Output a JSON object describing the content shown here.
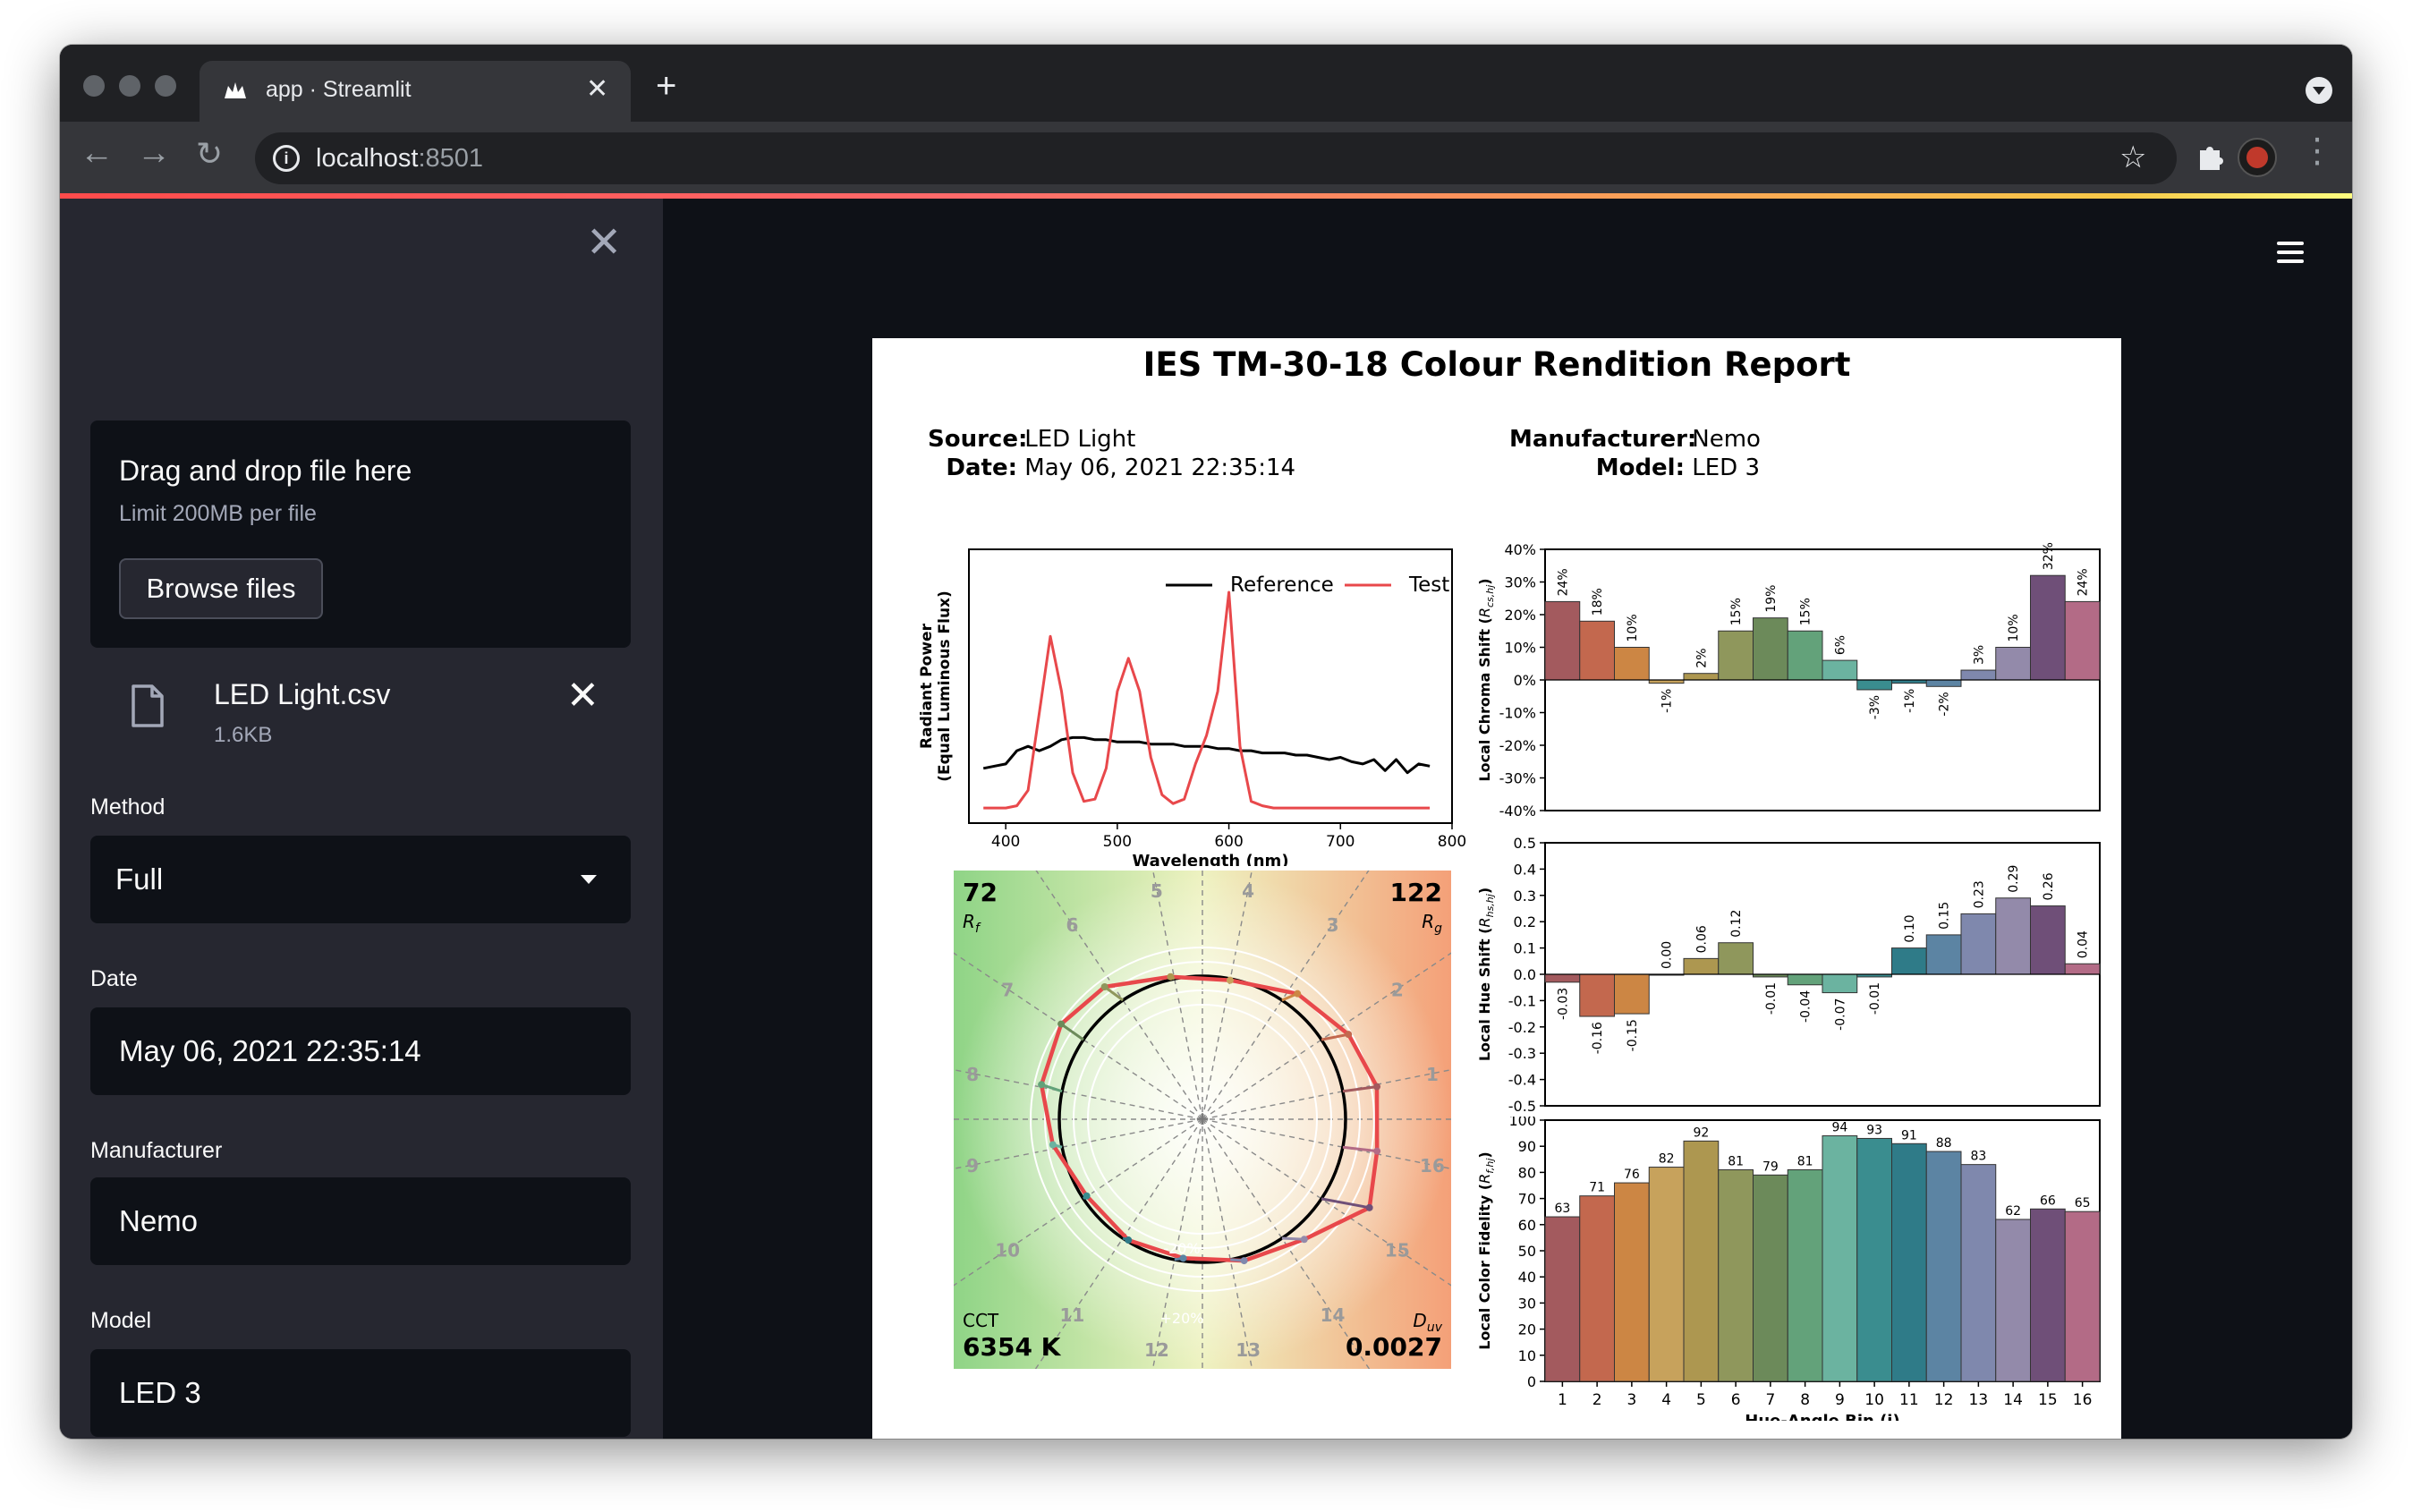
{
  "browser": {
    "tab_title": "app · Streamlit",
    "url_host": "localhost",
    "url_port": ":8501"
  },
  "sidebar": {
    "uploader": {
      "title": "Drag and drop file here",
      "limit": "Limit 200MB per file",
      "browse_label": "Browse files"
    },
    "file": {
      "name": "LED Light.csv",
      "size": "1.6KB"
    },
    "method": {
      "label": "Method",
      "value": "Full"
    },
    "date": {
      "label": "Date",
      "value": "May 06, 2021 22:35:14"
    },
    "manufacturer": {
      "label": "Manufacturer",
      "value": "Nemo"
    },
    "model": {
      "label": "Model",
      "value": "LED 3"
    }
  },
  "report": {
    "title": "IES TM-30-18 Colour Rendition Report",
    "source_label": "Source:",
    "source": "LED Light",
    "date_label": "Date:",
    "date": "May 06, 2021 22:35:14",
    "manufacturer_label": "Manufacturer:",
    "manufacturer": "Nemo",
    "model_label": "Model:",
    "model": "LED 3",
    "rf": "72",
    "rf_label": "R_f",
    "rg": "122",
    "rg_label": "R_g",
    "cct_label": "CCT",
    "cct": "6354 K",
    "duv_label": "D_uv",
    "duv": "0.0027",
    "vector_ring_minus": "-20%",
    "vector_ring_plus": "+20%",
    "vector_bins": [
      "1",
      "2",
      "3",
      "4",
      "5",
      "6",
      "7",
      "8",
      "9",
      "10",
      "11",
      "12",
      "13",
      "14",
      "15",
      "16"
    ]
  },
  "colors": {
    "reference": "#000000",
    "test": "#e8484b",
    "bins": [
      "#a35a5e",
      "#c3684e",
      "#cc8644",
      "#c7a25c",
      "#ad9750",
      "#8f975c",
      "#6c8a5a",
      "#63a27a",
      "#6bb3a0",
      "#3a8d8f",
      "#2f7b88",
      "#5c84a3",
      "#7f88ad",
      "#938aaa",
      "#6f4f78",
      "#b36b86"
    ]
  },
  "chart_data": [
    {
      "type": "line",
      "xlabel": "Wavelength (nm)",
      "ylabel": "Radiant Power (Equal Luminous Flux)",
      "xlim": [
        380,
        780
      ],
      "xticks": [
        400,
        500,
        600,
        700,
        800
      ],
      "legend": "top-right",
      "series": [
        {
          "name": "Reference",
          "x": [
            380,
            390,
            400,
            410,
            420,
            430,
            440,
            450,
            460,
            470,
            480,
            490,
            500,
            510,
            520,
            530,
            540,
            550,
            560,
            570,
            580,
            590,
            600,
            610,
            620,
            630,
            640,
            650,
            660,
            670,
            680,
            690,
            700,
            710,
            720,
            730,
            740,
            750,
            760,
            770,
            780
          ],
          "y": [
            0.2,
            0.21,
            0.22,
            0.28,
            0.3,
            0.28,
            0.3,
            0.33,
            0.34,
            0.34,
            0.33,
            0.33,
            0.32,
            0.32,
            0.32,
            0.31,
            0.31,
            0.31,
            0.3,
            0.3,
            0.3,
            0.29,
            0.29,
            0.28,
            0.28,
            0.27,
            0.27,
            0.27,
            0.26,
            0.26,
            0.25,
            0.24,
            0.25,
            0.23,
            0.22,
            0.24,
            0.19,
            0.24,
            0.18,
            0.22,
            0.21
          ]
        },
        {
          "name": "Test",
          "x": [
            380,
            390,
            400,
            410,
            420,
            430,
            440,
            450,
            460,
            470,
            480,
            490,
            500,
            510,
            520,
            530,
            540,
            550,
            560,
            570,
            580,
            590,
            600,
            610,
            620,
            630,
            640,
            650,
            660,
            670,
            680,
            690,
            700,
            710,
            720,
            730,
            740,
            750,
            760,
            770,
            780
          ],
          "y": [
            0.02,
            0.02,
            0.02,
            0.03,
            0.1,
            0.45,
            0.8,
            0.55,
            0.18,
            0.05,
            0.06,
            0.2,
            0.55,
            0.7,
            0.55,
            0.25,
            0.08,
            0.04,
            0.06,
            0.22,
            0.35,
            0.55,
            1.0,
            0.3,
            0.05,
            0.03,
            0.02,
            0.02,
            0.02,
            0.02,
            0.02,
            0.02,
            0.02,
            0.02,
            0.02,
            0.02,
            0.02,
            0.02,
            0.02,
            0.02,
            0.02
          ]
        }
      ]
    },
    {
      "type": "bar",
      "ylabel": "Local Chroma Shift (R_cs,hj)",
      "ylim": [
        -0.4,
        0.4
      ],
      "yticks": [
        "-40%",
        "-30%",
        "-20%",
        "-10%",
        "0%",
        "10%",
        "20%",
        "30%",
        "40%"
      ],
      "categories": [
        "1",
        "2",
        "3",
        "4",
        "5",
        "6",
        "7",
        "8",
        "9",
        "10",
        "11",
        "12",
        "13",
        "14",
        "15",
        "16"
      ],
      "values": [
        0.24,
        0.18,
        0.1,
        -0.01,
        0.02,
        0.15,
        0.19,
        0.15,
        0.06,
        -0.03,
        -0.01,
        -0.02,
        0.03,
        0.1,
        0.32,
        0.24
      ],
      "labels": [
        "24%",
        "18%",
        "10%",
        "-1%",
        "2%",
        "15%",
        "19%",
        "15%",
        "6%",
        "-3%",
        "-1%",
        "-2%",
        "3%",
        "10%",
        "32%",
        "24%"
      ]
    },
    {
      "type": "bar",
      "ylabel": "Local Hue Shift (R_hs,hj)",
      "ylim": [
        -0.5,
        0.5
      ],
      "yticks": [
        "-0.5",
        "-0.4",
        "-0.3",
        "-0.2",
        "-0.1",
        "0.0",
        "0.1",
        "0.2",
        "0.3",
        "0.4",
        "0.5"
      ],
      "categories": [
        "1",
        "2",
        "3",
        "4",
        "5",
        "6",
        "7",
        "8",
        "9",
        "10",
        "11",
        "12",
        "13",
        "14",
        "15",
        "16"
      ],
      "values": [
        -0.03,
        -0.16,
        -0.15,
        0.0,
        0.06,
        0.12,
        -0.01,
        -0.04,
        -0.07,
        -0.01,
        0.1,
        0.15,
        0.23,
        0.29,
        0.26,
        0.04
      ],
      "labels": [
        "-0.03",
        "-0.16",
        "-0.15",
        "0.00",
        "0.06",
        "0.12",
        "-0.01",
        "-0.04",
        "-0.07",
        "-0.01",
        "0.10",
        "0.15",
        "0.23",
        "0.29",
        "0.26",
        "0.04"
      ]
    },
    {
      "type": "bar",
      "xlabel": "Hue-Angle Bin (j)",
      "ylabel": "Local Color Fidelity (R_f,hj)",
      "ylim": [
        0,
        100
      ],
      "yticks": [
        "0",
        "10",
        "20",
        "30",
        "40",
        "50",
        "60",
        "70",
        "80",
        "90",
        "100"
      ],
      "categories": [
        "1",
        "2",
        "3",
        "4",
        "5",
        "6",
        "7",
        "8",
        "9",
        "10",
        "11",
        "12",
        "13",
        "14",
        "15",
        "16"
      ],
      "values": [
        63,
        71,
        76,
        82,
        92,
        81,
        79,
        81,
        94,
        93,
        91,
        88,
        83,
        62,
        66,
        65
      ],
      "labels": [
        "63",
        "71",
        "76",
        "82",
        "92",
        "81",
        "79",
        "81",
        "94",
        "93",
        "91",
        "88",
        "83",
        "62",
        "66",
        "65"
      ]
    }
  ]
}
